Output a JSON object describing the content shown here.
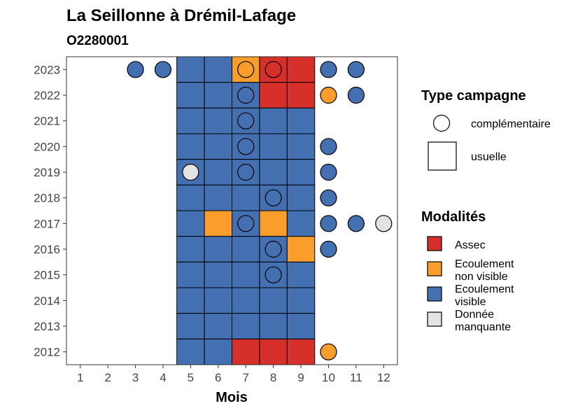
{
  "chart_data": {
    "type": "heatmap",
    "title": "La Seillonne à Drémil-Lafage",
    "subtitle": "O2280001",
    "xlabel": "Mois",
    "ylabel": "",
    "x_ticks": [
      "1",
      "2",
      "3",
      "4",
      "5",
      "6",
      "7",
      "8",
      "9",
      "10",
      "11",
      "12"
    ],
    "y_ticks": [
      "2012",
      "2013",
      "2014",
      "2015",
      "2016",
      "2017",
      "2018",
      "2019",
      "2020",
      "2021",
      "2022",
      "2023"
    ],
    "xlim": [
      0.5,
      12.5
    ],
    "ylim": [
      2011.5,
      2023.5
    ],
    "colors": {
      "Assec": "#d7302a",
      "Ecoulement non visible": "#f99d2d",
      "Ecoulement visible": "#4470b1",
      "Donnée manquante": "#e3e3e3"
    },
    "legend_type": {
      "title": "Type campagne",
      "entries": [
        "complémentaire",
        "usuelle"
      ],
      "placement": "right"
    },
    "legend_modalites": {
      "title": "Modalités",
      "entries": [
        {
          "key": "Assec",
          "lines": [
            "Assec"
          ]
        },
        {
          "key": "Ecoulement non visible",
          "lines": [
            "Ecoulement",
            "non visible"
          ]
        },
        {
          "key": "Ecoulement visible",
          "lines": [
            "Ecoulement",
            "visible"
          ]
        },
        {
          "key": "Donnée manquante",
          "lines": [
            "Donnée",
            "manquante"
          ]
        }
      ],
      "placement": "right"
    },
    "usuelle": [
      {
        "year": 2023,
        "months": [
          "Ecoulement visible",
          "Ecoulement visible",
          "Ecoulement non visible",
          "Assec",
          "Assec"
        ]
      },
      {
        "year": 2022,
        "months": [
          "Ecoulement visible",
          "Ecoulement visible",
          "Ecoulement visible",
          "Assec",
          "Assec"
        ]
      },
      {
        "year": 2021,
        "months": [
          "Ecoulement visible",
          "Ecoulement visible",
          "Ecoulement visible",
          "Ecoulement visible",
          "Ecoulement visible"
        ]
      },
      {
        "year": 2020,
        "months": [
          "Ecoulement visible",
          "Ecoulement visible",
          "Ecoulement visible",
          "Ecoulement visible",
          "Ecoulement visible"
        ]
      },
      {
        "year": 2019,
        "months": [
          "Ecoulement visible",
          "Ecoulement visible",
          "Ecoulement visible",
          "Ecoulement visible",
          "Ecoulement visible"
        ]
      },
      {
        "year": 2018,
        "months": [
          "Ecoulement visible",
          "Ecoulement visible",
          "Ecoulement visible",
          "Ecoulement visible",
          "Ecoulement visible"
        ]
      },
      {
        "year": 2017,
        "months": [
          "Ecoulement visible",
          "Ecoulement non visible",
          "Ecoulement visible",
          "Ecoulement non visible",
          "Ecoulement visible"
        ]
      },
      {
        "year": 2016,
        "months": [
          "Ecoulement visible",
          "Ecoulement visible",
          "Ecoulement visible",
          "Ecoulement visible",
          "Ecoulement non visible"
        ]
      },
      {
        "year": 2015,
        "months": [
          "Ecoulement visible",
          "Ecoulement visible",
          "Ecoulement visible",
          "Ecoulement visible",
          "Ecoulement visible"
        ]
      },
      {
        "year": 2014,
        "months": [
          "Ecoulement visible",
          "Ecoulement visible",
          "Ecoulement visible",
          "Ecoulement visible",
          "Ecoulement visible"
        ]
      },
      {
        "year": 2013,
        "months": [
          "Ecoulement visible",
          "Ecoulement visible",
          "Ecoulement visible",
          "Ecoulement visible",
          "Ecoulement visible"
        ]
      },
      {
        "year": 2012,
        "months": [
          "Ecoulement visible",
          "Ecoulement visible",
          "Assec",
          "Assec",
          "Assec"
        ]
      }
    ],
    "usuelle_months": [
      5,
      6,
      7,
      8,
      9
    ],
    "complementaire": [
      {
        "year": 2023,
        "month": 3,
        "value": "Ecoulement visible"
      },
      {
        "year": 2023,
        "month": 4,
        "value": "Ecoulement visible"
      },
      {
        "year": 2023,
        "month": 7,
        "value": "Ecoulement non visible"
      },
      {
        "year": 2023,
        "month": 8,
        "value": "Assec"
      },
      {
        "year": 2023,
        "month": 10,
        "value": "Ecoulement visible"
      },
      {
        "year": 2023,
        "month": 11,
        "value": "Ecoulement visible"
      },
      {
        "year": 2022,
        "month": 7,
        "value": "Ecoulement visible"
      },
      {
        "year": 2022,
        "month": 10,
        "value": "Ecoulement non visible"
      },
      {
        "year": 2022,
        "month": 11,
        "value": "Ecoulement visible"
      },
      {
        "year": 2021,
        "month": 7,
        "value": "Ecoulement visible"
      },
      {
        "year": 2020,
        "month": 7,
        "value": "Ecoulement visible"
      },
      {
        "year": 2020,
        "month": 10,
        "value": "Ecoulement visible"
      },
      {
        "year": 2019,
        "month": 5,
        "value": "Donnée manquante"
      },
      {
        "year": 2019,
        "month": 7,
        "value": "Ecoulement visible"
      },
      {
        "year": 2019,
        "month": 10,
        "value": "Ecoulement visible"
      },
      {
        "year": 2018,
        "month": 8,
        "value": "Ecoulement visible"
      },
      {
        "year": 2018,
        "month": 10,
        "value": "Ecoulement visible"
      },
      {
        "year": 2017,
        "month": 7,
        "value": "Ecoulement visible"
      },
      {
        "year": 2017,
        "month": 10,
        "value": "Ecoulement visible"
      },
      {
        "year": 2017,
        "month": 11,
        "value": "Ecoulement visible"
      },
      {
        "year": 2017,
        "month": 12,
        "value": "Donnée manquante"
      },
      {
        "year": 2016,
        "month": 8,
        "value": "Ecoulement visible"
      },
      {
        "year": 2016,
        "month": 10,
        "value": "Ecoulement visible"
      },
      {
        "year": 2015,
        "month": 8,
        "value": "Ecoulement visible"
      },
      {
        "year": 2012,
        "month": 10,
        "value": "Ecoulement non visible"
      }
    ]
  }
}
